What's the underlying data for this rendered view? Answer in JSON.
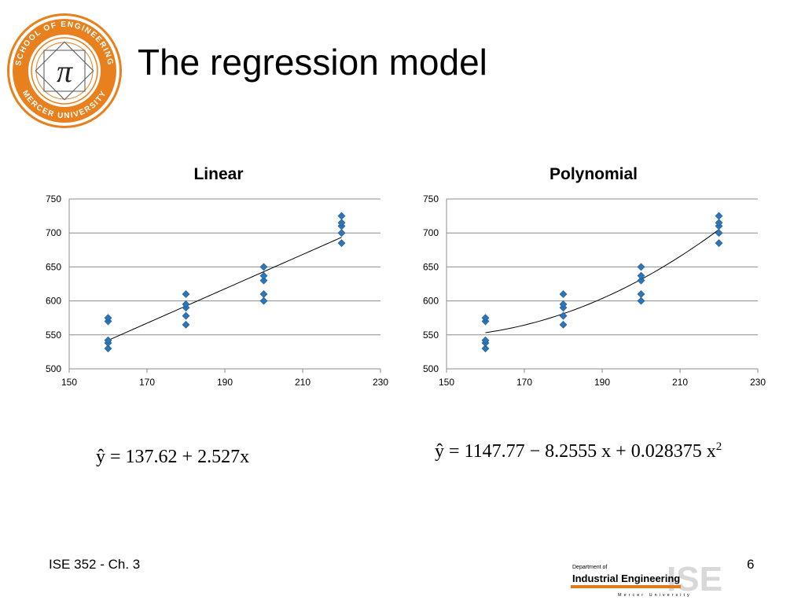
{
  "slide": {
    "title": "The regression model",
    "footer_left": "ISE 352 - Ch. 3",
    "page_number": "6"
  },
  "logo": {
    "ring_text_top": "SCHOOL OF ENGINEERING",
    "ring_text_bottom": "MERCER UNIVERSITY",
    "glyph": "π",
    "color": "#e8801e"
  },
  "dept_logo": {
    "line1": "Department of",
    "line2": "Industrial Engineering",
    "line3": "Mercer University",
    "big": "ISE"
  },
  "equations": {
    "linear": "ŷ = 137.62 + 2.527x",
    "poly_main": "ŷ = 1147.77 − 8.2555 x + 0.028375 x",
    "poly_exp": "2"
  },
  "chart_data": [
    {
      "type": "scatter",
      "title": "Linear",
      "xlim": [
        150,
        230
      ],
      "ylim": [
        500,
        750
      ],
      "xticks": [
        150,
        170,
        190,
        210,
        230
      ],
      "yticks": [
        500,
        550,
        600,
        650,
        700,
        750
      ],
      "grid": "horizontal",
      "marker_color": "#2e75b6",
      "points": [
        [
          160,
          530
        ],
        [
          160,
          538
        ],
        [
          160,
          542
        ],
        [
          160,
          570
        ],
        [
          160,
          575
        ],
        [
          180,
          565
        ],
        [
          180,
          578
        ],
        [
          180,
          590
        ],
        [
          180,
          595
        ],
        [
          180,
          610
        ],
        [
          200,
          600
        ],
        [
          200,
          610
        ],
        [
          200,
          630
        ],
        [
          200,
          637
        ],
        [
          200,
          650
        ],
        [
          220,
          685
        ],
        [
          220,
          700
        ],
        [
          220,
          710
        ],
        [
          220,
          715
        ],
        [
          220,
          725
        ]
      ],
      "fit": {
        "kind": "linear",
        "intercept": 137.62,
        "slope": 2.527,
        "x_range": [
          160,
          220
        ]
      }
    },
    {
      "type": "scatter",
      "title": "Polynomial",
      "xlim": [
        150,
        230
      ],
      "ylim": [
        500,
        750
      ],
      "xticks": [
        150,
        170,
        190,
        210,
        230
      ],
      "yticks": [
        500,
        550,
        600,
        650,
        700,
        750
      ],
      "grid": "horizontal",
      "marker_color": "#2e75b6",
      "points": [
        [
          160,
          530
        ],
        [
          160,
          538
        ],
        [
          160,
          542
        ],
        [
          160,
          570
        ],
        [
          160,
          575
        ],
        [
          180,
          565
        ],
        [
          180,
          578
        ],
        [
          180,
          590
        ],
        [
          180,
          595
        ],
        [
          180,
          610
        ],
        [
          200,
          600
        ],
        [
          200,
          610
        ],
        [
          200,
          630
        ],
        [
          200,
          637
        ],
        [
          200,
          650
        ],
        [
          220,
          685
        ],
        [
          220,
          700
        ],
        [
          220,
          710
        ],
        [
          220,
          715
        ],
        [
          220,
          725
        ]
      ],
      "fit": {
        "kind": "quadratic",
        "c0": 1147.77,
        "c1": -8.2555,
        "c2": 0.028375,
        "x_range": [
          160,
          220
        ]
      }
    }
  ]
}
